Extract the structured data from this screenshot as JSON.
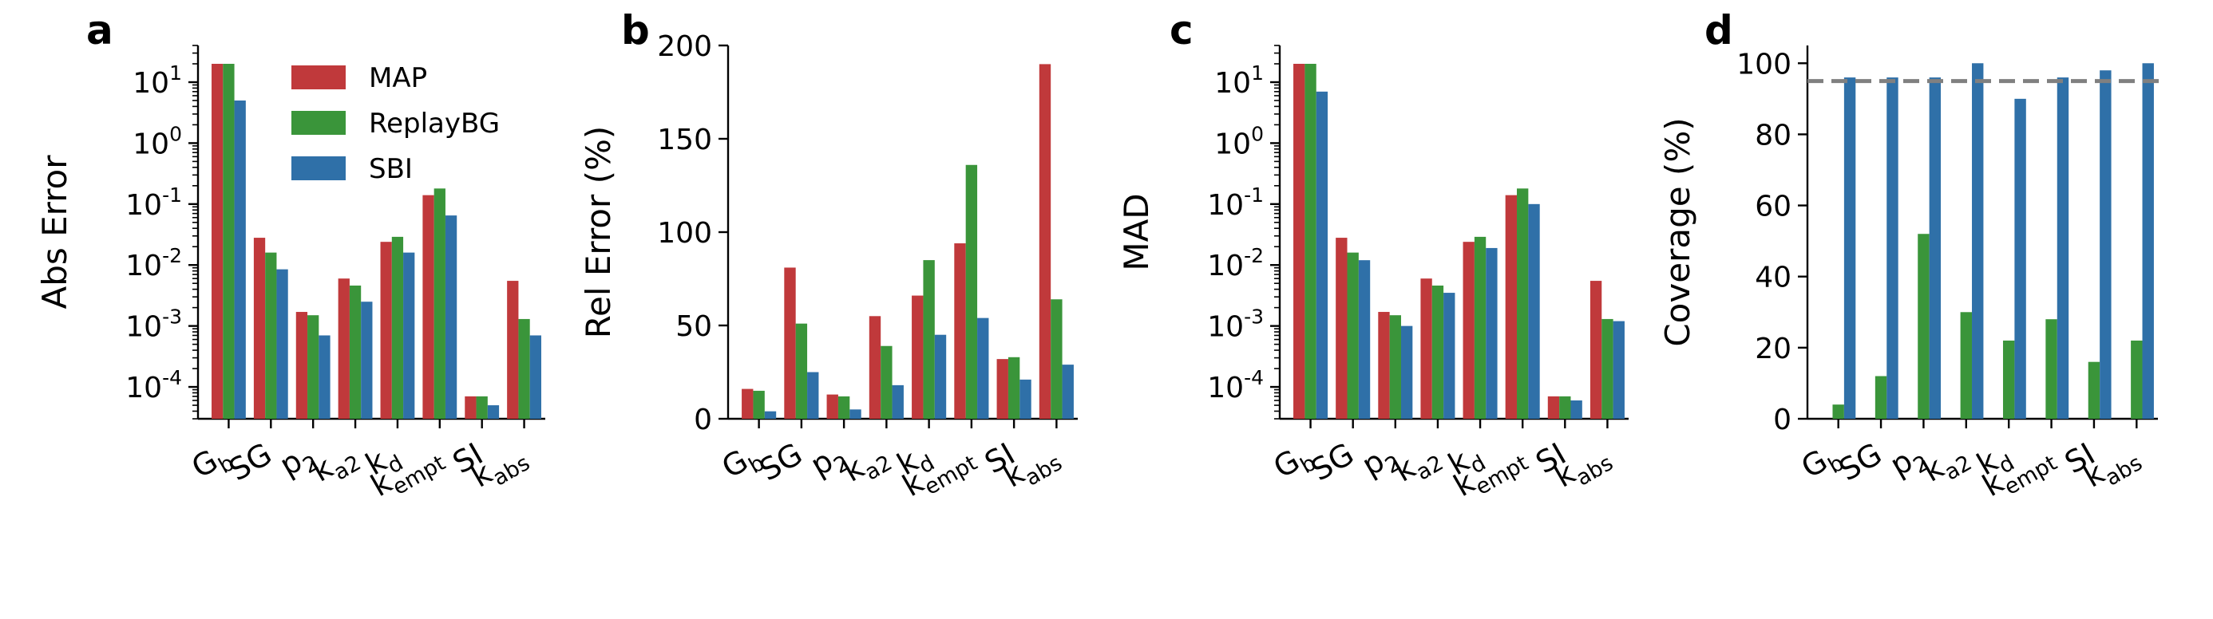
{
  "legend": [
    {
      "name": "MAP",
      "color": "#c0393b"
    },
    {
      "name": "ReplayBG",
      "color": "#3a953a"
    },
    {
      "name": "SBI",
      "color": "#2f70a8"
    }
  ],
  "chart_data": [
    {
      "panel": "a",
      "type": "bar",
      "ylabel": "Abs Error",
      "yscale": "log",
      "ylim": [
        3e-05,
        40
      ],
      "yticks": [
        "10^1",
        "10^0",
        "10^-1",
        "10^-2",
        "10^-3",
        "10^-4"
      ],
      "categories": [
        "G_b",
        "SG",
        "p_2",
        "k_a2",
        "k_d",
        "k_empt",
        "SI",
        "k_abs"
      ],
      "legend_position": "top-center",
      "series": [
        {
          "name": "MAP",
          "values": [
            20,
            0.028,
            0.0017,
            0.006,
            0.024,
            0.14,
            7e-05,
            0.0055
          ]
        },
        {
          "name": "ReplayBG",
          "values": [
            20,
            0.016,
            0.0015,
            0.0046,
            0.029,
            0.18,
            7e-05,
            0.0013
          ]
        },
        {
          "name": "SBI",
          "values": [
            5,
            0.0085,
            0.0007,
            0.0025,
            0.016,
            0.065,
            5e-05,
            0.0007
          ]
        }
      ]
    },
    {
      "panel": "b",
      "type": "bar",
      "ylabel": "Rel Error (%)",
      "yscale": "linear",
      "ylim": [
        0,
        200
      ],
      "yticks": [
        "0",
        "50",
        "100",
        "150",
        "200"
      ],
      "categories": [
        "G_b",
        "SG",
        "p_2",
        "k_a2",
        "k_d",
        "k_empt",
        "SI",
        "k_abs"
      ],
      "series": [
        {
          "name": "MAP",
          "values": [
            16,
            81,
            13,
            55,
            66,
            94,
            32,
            190
          ]
        },
        {
          "name": "ReplayBG",
          "values": [
            15,
            51,
            12,
            39,
            85,
            136,
            33,
            64
          ]
        },
        {
          "name": "SBI",
          "values": [
            4,
            25,
            5,
            18,
            45,
            54,
            21,
            29
          ]
        }
      ]
    },
    {
      "panel": "c",
      "type": "bar",
      "ylabel": "MAD",
      "yscale": "log",
      "ylim": [
        3e-05,
        40
      ],
      "yticks": [
        "10^1",
        "10^0",
        "10^-1",
        "10^-2",
        "10^-3",
        "10^-4"
      ],
      "categories": [
        "G_b",
        "SG",
        "p_2",
        "k_a2",
        "k_d",
        "k_empt",
        "SI",
        "k_abs"
      ],
      "series": [
        {
          "name": "MAP",
          "values": [
            20,
            0.028,
            0.0017,
            0.006,
            0.024,
            0.14,
            7e-05,
            0.0055
          ]
        },
        {
          "name": "ReplayBG",
          "values": [
            20,
            0.016,
            0.0015,
            0.0046,
            0.029,
            0.18,
            7e-05,
            0.0013
          ]
        },
        {
          "name": "SBI",
          "values": [
            7,
            0.012,
            0.001,
            0.0035,
            0.019,
            0.1,
            6e-05,
            0.0012
          ]
        }
      ]
    },
    {
      "panel": "d",
      "type": "bar",
      "ylabel": "Coverage (%)",
      "yscale": "linear",
      "ylim": [
        0,
        105
      ],
      "yticks": [
        "0",
        "20",
        "40",
        "60",
        "80",
        "100"
      ],
      "categories": [
        "G_b",
        "SG",
        "p_2",
        "k_a2",
        "k_d",
        "k_empt",
        "SI",
        "k_abs"
      ],
      "reference_line": 95,
      "series": [
        {
          "name": "MAP",
          "values": [
            0,
            0,
            0,
            0,
            0,
            0,
            0,
            0
          ]
        },
        {
          "name": "ReplayBG",
          "values": [
            4,
            12,
            52,
            30,
            22,
            28,
            16,
            22
          ]
        },
        {
          "name": "SBI",
          "values": [
            96,
            96,
            96,
            100,
            90,
            96,
            98,
            100
          ]
        }
      ]
    }
  ]
}
